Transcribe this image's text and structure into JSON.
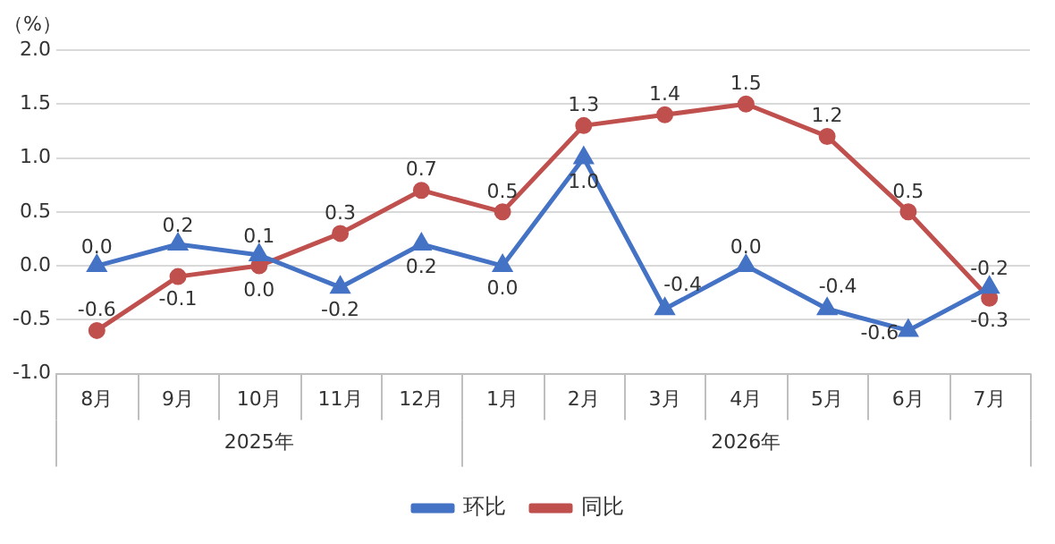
{
  "chart_data": {
    "type": "line",
    "ylabel": "（%）",
    "categories": [
      "8月",
      "9月",
      "10月",
      "11月",
      "12月",
      "1月",
      "2月",
      "3月",
      "4月",
      "5月",
      "6月",
      "7月"
    ],
    "series": [
      {
        "name": "环比",
        "color": "#4472c4",
        "marker": "triangle",
        "values": [
          0.0,
          0.2,
          0.1,
          -0.2,
          0.2,
          0.0,
          1.0,
          -0.4,
          0.0,
          -0.4,
          -0.6,
          -0.2
        ],
        "value_labels": [
          "0.0",
          "0.2",
          "0.1",
          "-0.2",
          "0.2",
          "0.0",
          "1.0",
          "-0.4",
          "0.0",
          "-0.4",
          "-0.6",
          "-0.2"
        ]
      },
      {
        "name": "同比",
        "color": "#c0504d",
        "marker": "circle",
        "values": [
          -0.6,
          -0.1,
          0.0,
          0.3,
          0.7,
          0.5,
          1.3,
          1.4,
          1.5,
          1.2,
          0.5,
          -0.3
        ],
        "value_labels": [
          "-0.6",
          "-0.1",
          "0.0",
          "0.3",
          "0.7",
          "0.5",
          "1.3",
          "1.4",
          "1.5",
          "1.2",
          "0.5",
          "-0.3"
        ]
      }
    ],
    "ylim": [
      -1,
      2
    ],
    "yticks": [
      {
        "value": -1,
        "label": "-1.0"
      },
      {
        "value": -0.5,
        "label": "-0.5"
      },
      {
        "value": 0,
        "label": "0.0"
      },
      {
        "value": 0.5,
        "label": "0.5"
      },
      {
        "value": 1,
        "label": "1.0"
      },
      {
        "value": 1.5,
        "label": "1.5"
      },
      {
        "value": 2,
        "label": "2.0"
      }
    ],
    "grid": "y",
    "legend": "bottom",
    "line_style": "solid",
    "annotations": [
      "2025年",
      "2026年"
    ]
  }
}
